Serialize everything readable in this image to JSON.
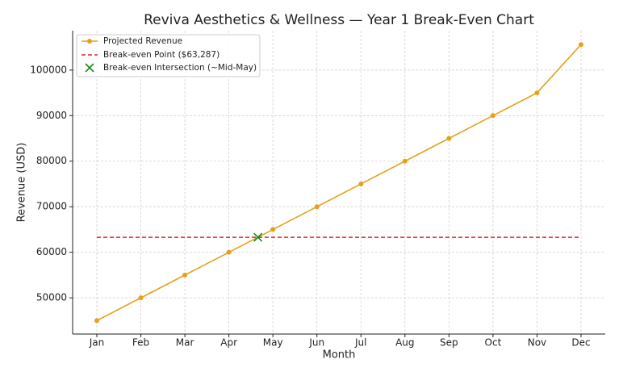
{
  "chart_data": {
    "type": "line",
    "title": "Reviva Aesthetics & Wellness — Year 1 Break-Even Chart",
    "x_label": "Month",
    "y_label": "Revenue (USD)",
    "categories": [
      "Jan",
      "Feb",
      "Mar",
      "Apr",
      "May",
      "Jun",
      "Jul",
      "Aug",
      "Sep",
      "Oct",
      "Nov",
      "Dec"
    ],
    "series": [
      {
        "name": "Projected Revenue",
        "color": "#e5a11a",
        "values": [
          45000,
          50000,
          55000,
          60000,
          65000,
          70000,
          75000,
          80000,
          85000,
          90000,
          95000,
          105600
        ]
      }
    ],
    "break_even": {
      "name": "Break-even Point ($63,287)",
      "color": "#d62728",
      "value": 63287
    },
    "intersection": {
      "name": "Break-even Intersection (~Mid-May)",
      "color": "#1a8a1a",
      "x": 3.66,
      "y": 63287
    },
    "xlim": [
      -0.55,
      11.55
    ],
    "ylim": [
      42050,
      108650
    ],
    "yticks": [
      50000,
      60000,
      70000,
      80000,
      90000,
      100000
    ],
    "grid": true,
    "legend": "upper left"
  }
}
